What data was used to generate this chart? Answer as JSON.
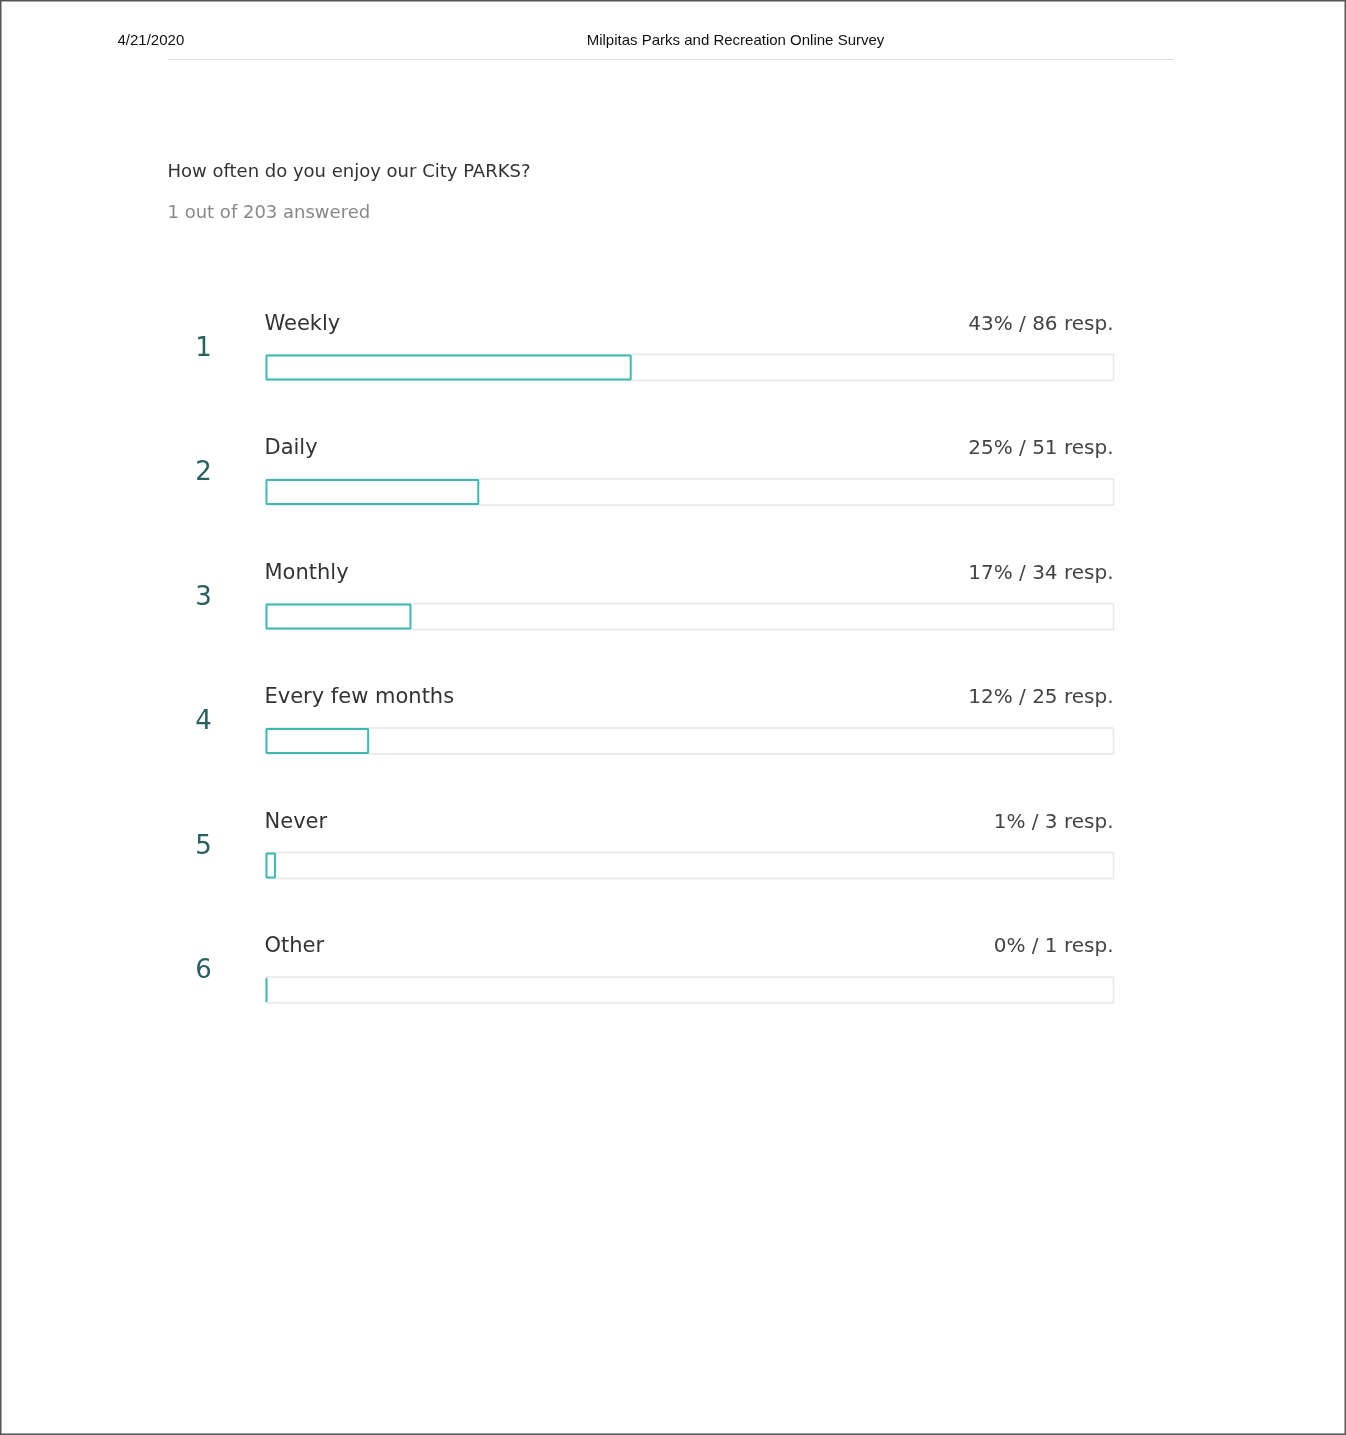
{
  "chart_data": {
    "type": "bar",
    "orientation": "horizontal",
    "title": "How often do you enjoy our City PARKS?",
    "subtitle": "1 out of 203 answered",
    "categories": [
      "Weekly",
      "Daily",
      "Monthly",
      "Every few months",
      "Never",
      "Other"
    ],
    "values": [
      43,
      25,
      17,
      12,
      1,
      0
    ],
    "value_labels": [
      "43% / 86 resp.",
      "25% / 51 resp.",
      "17% / 34 resp.",
      "12% / 25 resp.",
      "1% / 3 resp.",
      "0% / 1 resp."
    ],
    "color": "#3dbab0",
    "xlim": [
      0,
      100
    ],
    "tick_labels": "y",
    "grid": false,
    "annotations": [
      "4/21/2020",
      "Milpitas Parks and Recreation Online Survey",
      "1",
      "2",
      "3",
      "4",
      "5",
      "6"
    ]
  }
}
